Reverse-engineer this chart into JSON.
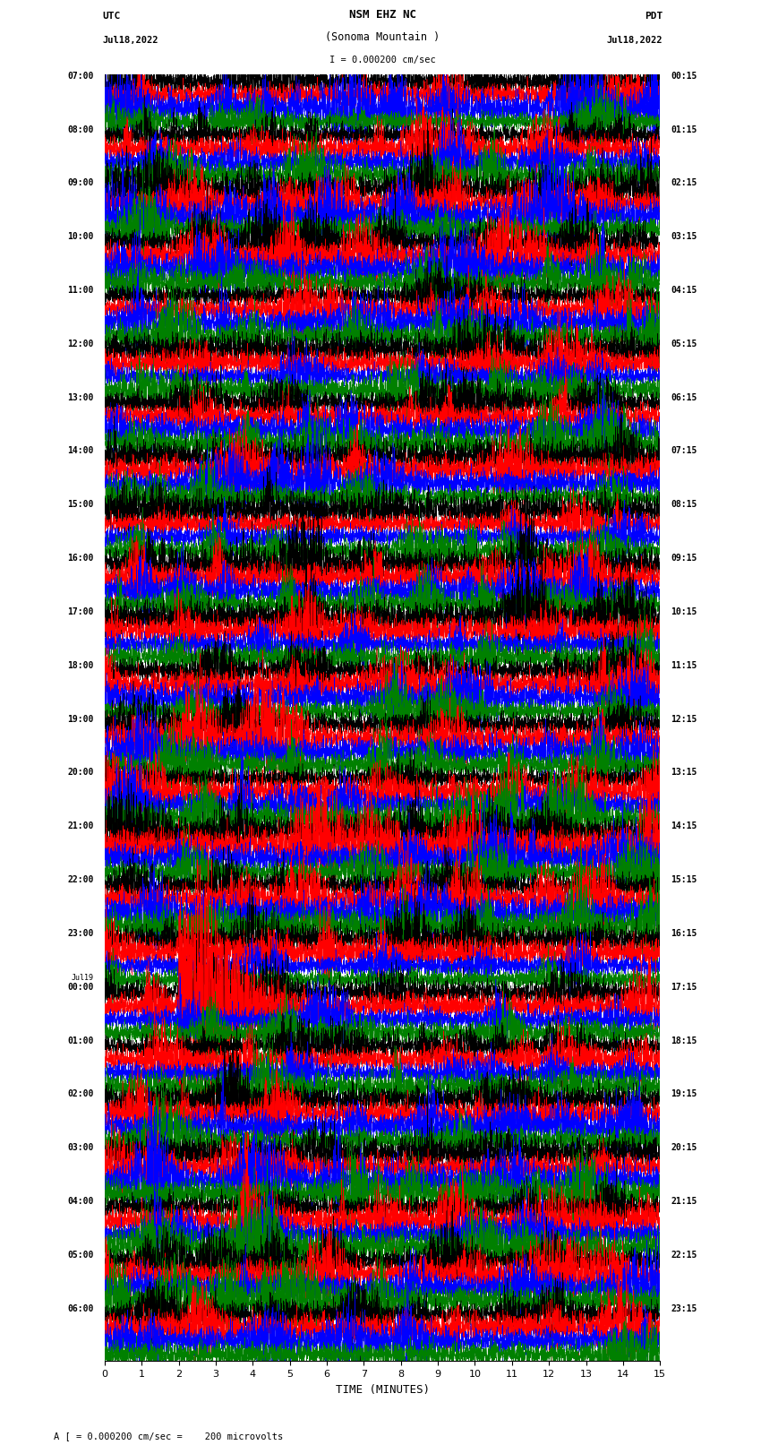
{
  "title_line1": "NSM EHZ NC",
  "title_line2": "(Sonoma Mountain )",
  "title_line3": "I = 0.000200 cm/sec",
  "left_header_label": "UTC",
  "left_header_date": "Jul18,2022",
  "right_header_label": "PDT",
  "right_header_date": "Jul18,2022",
  "xlabel": "TIME (MINUTES)",
  "footer_text": "A [ = 0.000200 cm/sec =    200 microvolts",
  "utc_times": [
    "07:00",
    "08:00",
    "09:00",
    "10:00",
    "11:00",
    "12:00",
    "13:00",
    "14:00",
    "15:00",
    "16:00",
    "17:00",
    "18:00",
    "19:00",
    "20:00",
    "21:00",
    "22:00",
    "23:00",
    "Jul19|00:00",
    "01:00",
    "02:00",
    "03:00",
    "04:00",
    "05:00",
    "06:00"
  ],
  "pdt_times": [
    "00:15",
    "01:15",
    "02:15",
    "03:15",
    "04:15",
    "05:15",
    "06:15",
    "07:15",
    "08:15",
    "09:15",
    "10:15",
    "11:15",
    "12:15",
    "13:15",
    "14:15",
    "15:15",
    "16:15",
    "17:15",
    "18:15",
    "19:15",
    "20:15",
    "21:15",
    "22:15",
    "23:15"
  ],
  "trace_colors": [
    "black",
    "red",
    "blue",
    "green"
  ],
  "n_rows": 24,
  "traces_per_row": 4,
  "x_min": 0,
  "x_max": 15,
  "x_ticks": [
    0,
    1,
    2,
    3,
    4,
    5,
    6,
    7,
    8,
    9,
    10,
    11,
    12,
    13,
    14,
    15
  ],
  "figsize": [
    8.5,
    16.13
  ],
  "dpi": 100,
  "background_color": "white",
  "trace_amplitude": 0.1,
  "noise_seed": 0
}
